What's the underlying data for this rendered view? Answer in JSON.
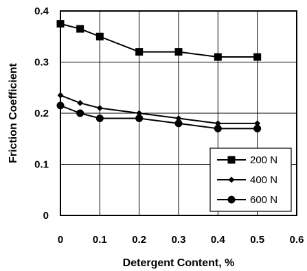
{
  "chart_data": {
    "type": "line",
    "xlabel": "Detergent Content, %",
    "ylabel": "Friction Coefficient",
    "xlim": [
      0,
      0.6
    ],
    "ylim": [
      0,
      0.4
    ],
    "xticks": [
      "0",
      "0.1",
      "0.2",
      "0.3",
      "0.4",
      "0.5",
      "0.6"
    ],
    "yticks": [
      "0",
      "0.1",
      "0.2",
      "0.3",
      "0.4"
    ],
    "grid": true,
    "legend_position": "bottom-right",
    "series": [
      {
        "name": "200 N",
        "marker": "square",
        "x": [
          0,
          0.05,
          0.1,
          0.2,
          0.3,
          0.4,
          0.5
        ],
        "y": [
          0.375,
          0.365,
          0.35,
          0.32,
          0.32,
          0.31,
          0.31
        ]
      },
      {
        "name": "400 N",
        "marker": "diamond",
        "x": [
          0,
          0.05,
          0.1,
          0.2,
          0.3,
          0.4,
          0.5
        ],
        "y": [
          0.235,
          0.22,
          0.21,
          0.2,
          0.19,
          0.18,
          0.18
        ]
      },
      {
        "name": "600 N",
        "marker": "circle",
        "x": [
          0,
          0.05,
          0.1,
          0.2,
          0.3,
          0.4,
          0.5
        ],
        "y": [
          0.215,
          0.2,
          0.19,
          0.19,
          0.18,
          0.17,
          0.17
        ]
      }
    ]
  }
}
